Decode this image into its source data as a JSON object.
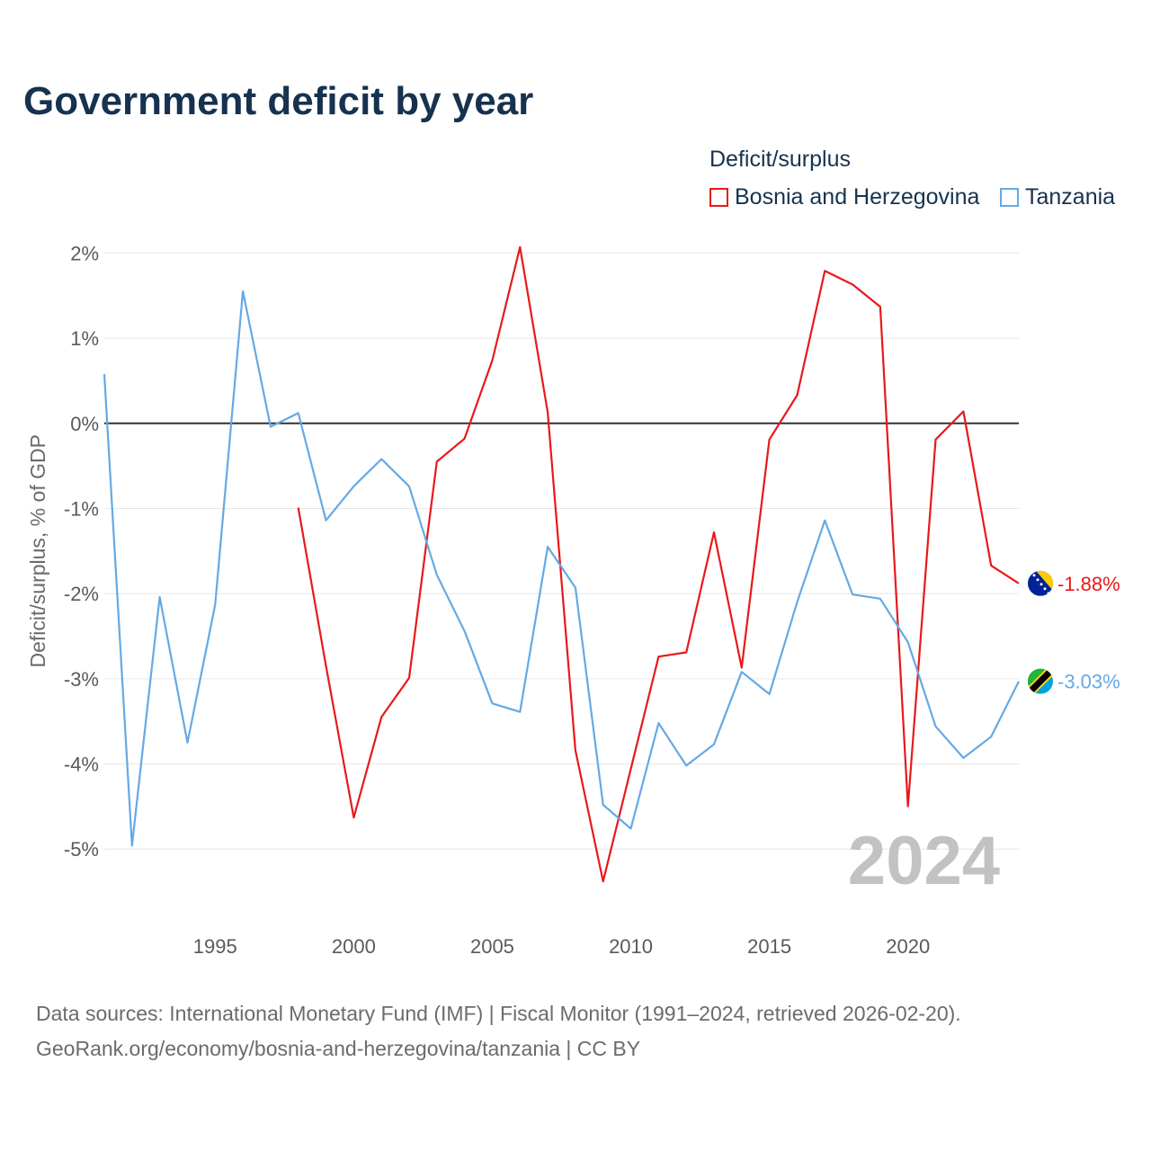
{
  "title": "Government deficit by year",
  "legend": {
    "title": "Deficit/surplus",
    "items": [
      {
        "name": "Bosnia and Herzegovina",
        "color": "#e8191b"
      },
      {
        "name": "Tanzania",
        "color": "#65a9e4"
      }
    ]
  },
  "watermark_year": "2024",
  "source_line1": "Data sources: International Monetary Fund (IMF) | Fiscal Monitor (1991–2024, retrieved 2026-02-20).",
  "source_line2": "GeoRank.org/economy/bosnia-and-herzegovina/tanzania | CC BY",
  "chart_data": {
    "type": "line",
    "title": "Government deficit by year",
    "xlabel": "",
    "ylabel": "Deficit/surplus, % of GDP",
    "xlim": [
      1991,
      2024
    ],
    "ylim": [
      -5.6,
      2.3
    ],
    "x_ticks": [
      1995,
      2000,
      2005,
      2010,
      2015,
      2020
    ],
    "y_ticks": [
      2,
      1,
      0,
      -1,
      -2,
      -3,
      -4,
      -5
    ],
    "y_tick_labels": [
      "2%",
      "1%",
      "0%",
      "-1%",
      "-2%",
      "-3%",
      "-4%",
      "-5%"
    ],
    "grid": true,
    "legend_position": "top-right",
    "series": [
      {
        "name": "Bosnia and Herzegovina",
        "color": "#e8191b",
        "icon": "bosnia-flag-icon",
        "end_label": "-1.88%",
        "x": [
          1998,
          1999,
          2000,
          2001,
          2002,
          2003,
          2004,
          2005,
          2006,
          2007,
          2008,
          2009,
          2010,
          2011,
          2012,
          2013,
          2014,
          2015,
          2016,
          2017,
          2018,
          2019,
          2020,
          2021,
          2022,
          2023,
          2024
        ],
        "values": [
          -0.99,
          -2.85,
          -4.63,
          -3.45,
          -2.99,
          -0.45,
          -0.18,
          0.74,
          2.07,
          0.13,
          -3.84,
          -5.38,
          -4.06,
          -2.74,
          -2.69,
          -1.28,
          -2.87,
          -0.19,
          0.33,
          1.79,
          1.63,
          1.37,
          -4.5,
          -0.19,
          0.14,
          -1.67,
          -1.88
        ]
      },
      {
        "name": "Tanzania",
        "color": "#65a9e4",
        "icon": "tanzania-flag-icon",
        "end_label": "-3.03%",
        "x": [
          1991,
          1992,
          1993,
          1994,
          1995,
          1996,
          1997,
          1998,
          1999,
          2000,
          2001,
          2002,
          2003,
          2004,
          2005,
          2006,
          2007,
          2008,
          2009,
          2010,
          2011,
          2012,
          2013,
          2014,
          2015,
          2016,
          2017,
          2018,
          2019,
          2020,
          2021,
          2022,
          2023,
          2024
        ],
        "values": [
          0.58,
          -4.96,
          -2.04,
          -3.75,
          -2.13,
          1.55,
          -0.04,
          0.12,
          -1.14,
          -0.74,
          -0.42,
          -0.74,
          -1.78,
          -2.44,
          -3.29,
          -3.39,
          -1.45,
          -1.93,
          -4.48,
          -4.76,
          -3.52,
          -4.02,
          -3.77,
          -2.92,
          -3.18,
          -2.1,
          -1.14,
          -2.01,
          -2.06,
          -2.57,
          -3.56,
          -3.93,
          -3.68,
          -3.03
        ]
      }
    ]
  }
}
